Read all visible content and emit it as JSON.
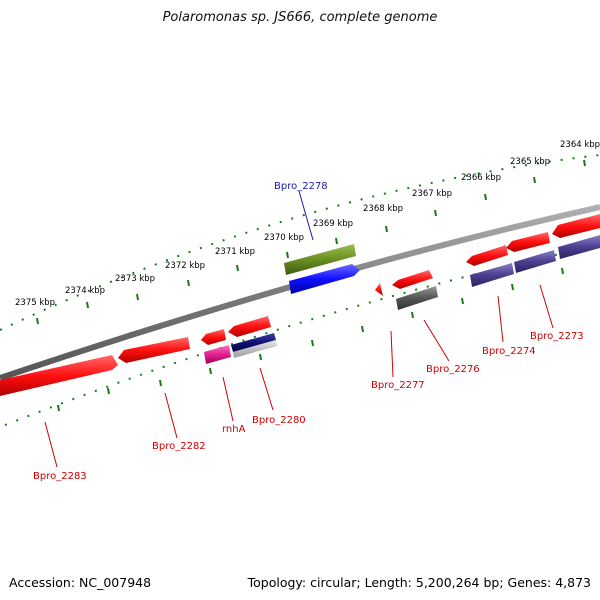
{
  "title": "Polaromonas sp. JS666, complete genome",
  "accession_text": "Accession: NC_007948",
  "summary_text": "Topology: circular; Length: 5,200,264 bp; Genes: 4,873",
  "ticks": [
    "2364 kbp",
    "2365 kbp",
    "2366 kbp",
    "2367 kbp",
    "2368 kbp",
    "2369 kbp",
    "2370 kbp",
    "2371 kbp",
    "2372 kbp",
    "2373 kbp",
    "2374 kbp",
    "2375 kbp"
  ],
  "genes": [
    {
      "id": "Bpro_2273",
      "label": "Bpro_2273",
      "color": "#d00000"
    },
    {
      "id": "Bpro_2274",
      "label": "Bpro_2274",
      "color": "#d00000"
    },
    {
      "id": "Bpro_2276",
      "label": "Bpro_2276",
      "color": "#d00000"
    },
    {
      "id": "Bpro_2277",
      "label": "Bpro_2277",
      "color": "#d00000"
    },
    {
      "id": "Bpro_2278",
      "label": "Bpro_2278",
      "color": "#1a1ab0"
    },
    {
      "id": "Bpro_2280",
      "label": "Bpro_2280",
      "color": "#d00000"
    },
    {
      "id": "rnhA",
      "label": "rnhA",
      "color": "#d00000"
    },
    {
      "id": "Bpro_2282",
      "label": "Bpro_2282",
      "color": "#d00000"
    },
    {
      "id": "Bpro_2283",
      "label": "Bpro_2283",
      "color": "#d00000"
    }
  ],
  "colors": {
    "backbone": "#7a7a7a",
    "tick": "#1a7a1a",
    "red": "#ff1010",
    "blue": "#1010ff",
    "olive": "#6b8e23",
    "navy": "#10107a",
    "slate": "#4a3f8f",
    "magenta": "#e0208f",
    "gray": "#555555"
  }
}
